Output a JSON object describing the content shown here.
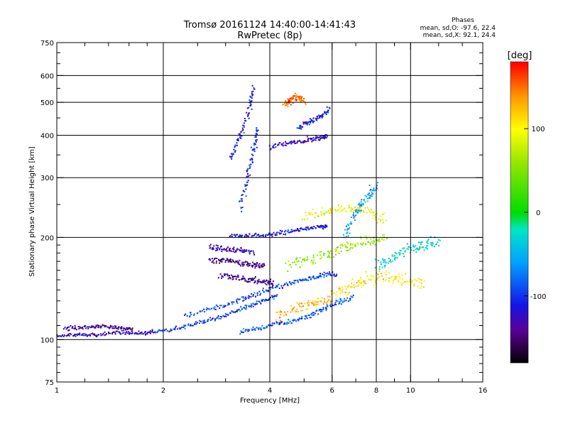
{
  "chart_data": {
    "type": "scatter",
    "title": "Tromsø 20161124 14:40:00-14:41:43",
    "subtitle": "RwPretec (8p)",
    "xlabel": "Frequency [MHz]",
    "ylabel": "Stationary phase Virtual Height [km]",
    "x_scale": "log",
    "y_scale": "log",
    "xlim": [
      1,
      16
    ],
    "ylim": [
      75,
      750
    ],
    "x_ticks": [
      1,
      2,
      4,
      6,
      8,
      10,
      16
    ],
    "y_ticks": [
      75,
      100,
      200,
      300,
      400,
      500,
      600,
      750
    ],
    "x_grid": [
      2,
      4,
      6,
      8,
      10
    ],
    "y_grid": [
      100,
      200,
      300,
      400,
      500,
      600
    ],
    "grid": true,
    "colorbar": {
      "label": "[deg]",
      "range": [
        -180,
        180
      ],
      "ticks": [
        100,
        0,
        -100
      ]
    },
    "stats": {
      "heading": "Phases",
      "line_o": "mean, sd,O: -97.6, 22.4",
      "line_x": "mean, sd,X:  92.1, 24.4"
    },
    "traces": [
      {
        "x": [
          1.0,
          1.15,
          1.3,
          1.5,
          1.7,
          1.9
        ],
        "y": [
          102,
          104,
          103,
          105,
          104,
          106
        ],
        "phase": -125,
        "spread": 0.02
      },
      {
        "x": [
          1.05,
          1.2,
          1.35,
          1.5,
          1.65
        ],
        "y": [
          108,
          109,
          110,
          108,
          107
        ],
        "phase": -140,
        "spread": 0.02
      },
      {
        "x": [
          1.9,
          2.2,
          2.6,
          3.0,
          3.4,
          3.8,
          4.2
        ],
        "y": [
          105,
          108,
          113,
          118,
          124,
          130,
          134
        ],
        "phase": -95,
        "spread": 0.02
      },
      {
        "x": [
          2.3,
          2.8,
          3.3,
          3.8,
          4.4,
          5.0,
          5.6,
          6.2
        ],
        "y": [
          118,
          124,
          131,
          138,
          145,
          150,
          154,
          156
        ],
        "phase": -92,
        "spread": 0.025
      },
      {
        "x": [
          3.3,
          3.8,
          4.4,
          5.0,
          5.6,
          6.2,
          6.9
        ],
        "y": [
          105,
          108,
          112,
          116,
          122,
          128,
          134
        ],
        "phase": -85,
        "spread": 0.025
      },
      {
        "x": [
          2.7,
          3.0,
          3.3,
          3.6,
          3.9
        ],
        "y": [
          170,
          172,
          168,
          166,
          165
        ],
        "phase": -145,
        "spread": 0.03
      },
      {
        "x": [
          2.9,
          3.2,
          3.5,
          3.8,
          4.1
        ],
        "y": [
          155,
          152,
          150,
          148,
          147
        ],
        "phase": -140,
        "spread": 0.03
      },
      {
        "x": [
          2.7,
          3.0,
          3.3,
          3.6
        ],
        "y": [
          188,
          185,
          183,
          182
        ],
        "phase": -130,
        "spread": 0.03
      },
      {
        "x": [
          3.1,
          3.3,
          3.5,
          3.6
        ],
        "y": [
          340,
          400,
          480,
          560
        ],
        "phase": -110,
        "spread": 0.03
      },
      {
        "x": [
          3.3,
          3.45,
          3.6,
          3.7
        ],
        "y": [
          240,
          300,
          360,
          420
        ],
        "phase": -100,
        "spread": 0.035
      },
      {
        "x": [
          3.1,
          3.5,
          4.0,
          4.5,
          5.0,
          5.5,
          5.8
        ],
        "y": [
          203,
          202,
          204,
          207,
          212,
          215,
          216
        ],
        "phase": -110,
        "spread": 0.02
      },
      {
        "x": [
          4.0,
          4.5,
          5.0,
          5.5,
          5.8
        ],
        "y": [
          370,
          378,
          385,
          392,
          398
        ],
        "phase": -118,
        "spread": 0.025
      },
      {
        "x": [
          4.8,
          5.2,
          5.6,
          5.9
        ],
        "y": [
          420,
          440,
          455,
          480
        ],
        "phase": -105,
        "spread": 0.03
      },
      {
        "x": [
          4.5,
          5.2,
          6.0,
          6.8,
          7.6,
          8.5
        ],
        "y": [
          165,
          172,
          180,
          190,
          196,
          200
        ],
        "phase": 60,
        "spread": 0.05
      },
      {
        "x": [
          5.0,
          5.8,
          6.6,
          7.5,
          8.5
        ],
        "y": [
          230,
          238,
          243,
          238,
          225
        ],
        "phase": 95,
        "spread": 0.05
      },
      {
        "x": [
          6.0,
          6.8,
          7.5,
          8.5,
          9.5,
          11.0
        ],
        "y": [
          135,
          142,
          150,
          155,
          148,
          145
        ],
        "phase": 110,
        "spread": 0.07
      },
      {
        "x": [
          4.2,
          4.8,
          5.4,
          6.0
        ],
        "y": [
          118,
          124,
          128,
          132
        ],
        "phase": 130,
        "spread": 0.05
      },
      {
        "x": [
          6.5,
          7.0,
          7.5,
          8.0
        ],
        "y": [
          200,
          235,
          260,
          285
        ],
        "phase": -60,
        "spread": 0.05
      },
      {
        "x": [
          8.0,
          9.0,
          10.0,
          11.0,
          12.0
        ],
        "y": [
          165,
          175,
          185,
          190,
          195
        ],
        "phase": -30,
        "spread": 0.06
      },
      {
        "x": [
          4.4,
          4.6,
          4.8,
          5.0
        ],
        "y": [
          495,
          510,
          520,
          505
        ],
        "phase": 150,
        "spread": 0.04
      }
    ]
  }
}
